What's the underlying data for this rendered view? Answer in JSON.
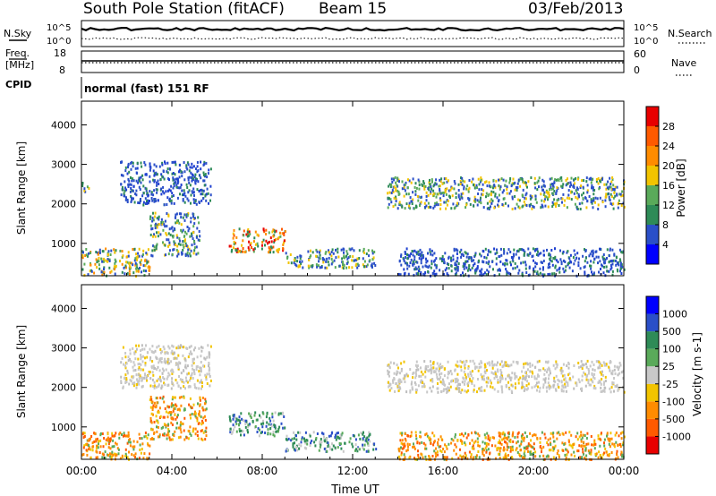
{
  "header": {
    "station": "South Pole Station (fitACF)",
    "beam": "Beam 15",
    "date": "03/Feb/2013"
  },
  "top_panels": {
    "nsky_label": "N.Sky",
    "nsky_ticks": [
      "10^5",
      "10^0"
    ],
    "nsearch_label": "N.Search",
    "nsearch_ticks": [
      "10^5",
      "10^0"
    ],
    "freq_label": "Freq.",
    "freq_unit": "[MHz]",
    "freq_ticks": [
      "18",
      "8"
    ],
    "nave_label": "Nave",
    "nave_ticks": [
      "60",
      "0"
    ],
    "cpid_label": "CPID",
    "cpid_value": "normal (fast) 151 RF"
  },
  "chart_data": [
    {
      "type": "heatmap",
      "panel": "power",
      "ylabel": "Slant Range [km]",
      "xlabel": "",
      "ylim": [
        180,
        4600
      ],
      "y_ticks": [
        "4000",
        "3000",
        "2000",
        "1000"
      ],
      "x_ticks": [
        "00:00",
        "04:00",
        "08:00",
        "12:00",
        "16:00",
        "20:00",
        "00:00"
      ],
      "colorbar_label": "Power [dB]",
      "colorbar_ticks": [
        "28",
        "24",
        "20",
        "16",
        "12",
        "8",
        "4"
      ],
      "colorbar_colors": [
        "#0000ff",
        "#2a4fc8",
        "#2e8b57",
        "#5aaa5a",
        "#f2c400",
        "#ff8c00",
        "#ff5a00",
        "#e80000"
      ],
      "echo_bands": [
        {
          "t": [
            0.0,
            3.0
          ],
          "range": [
            200,
            900
          ],
          "level": "mixed"
        },
        {
          "t": [
            0.0,
            0.3
          ],
          "range": [
            2300,
            2600
          ],
          "level": "medium"
        },
        {
          "t": [
            1.7,
            5.7
          ],
          "range": [
            2000,
            3100
          ],
          "level": "low"
        },
        {
          "t": [
            3.0,
            5.2
          ],
          "range": [
            700,
            1800
          ],
          "level": "medium"
        },
        {
          "t": [
            6.5,
            9.0
          ],
          "range": [
            800,
            1400
          ],
          "level": "high"
        },
        {
          "t": [
            9.0,
            13.0
          ],
          "range": [
            400,
            900
          ],
          "level": "medium"
        },
        {
          "t": [
            13.5,
            24.0
          ],
          "range": [
            1900,
            2700
          ],
          "level": "medium"
        },
        {
          "t": [
            14.0,
            24.0
          ],
          "range": [
            200,
            900
          ],
          "level": "low"
        }
      ]
    },
    {
      "type": "heatmap",
      "panel": "velocity",
      "ylabel": "Slant Range [km]",
      "xlabel": "Time UT",
      "ylim": [
        180,
        4600
      ],
      "y_ticks": [
        "4000",
        "3000",
        "2000",
        "1000"
      ],
      "x_ticks": [
        "00:00",
        "04:00",
        "08:00",
        "12:00",
        "16:00",
        "20:00",
        "00:00"
      ],
      "colorbar_label": "Velocity [m s-1]",
      "colorbar_ticks": [
        "1000",
        "500",
        "100",
        "25",
        "-25",
        "-100",
        "-500",
        "-1000"
      ],
      "colorbar_colors": [
        "#e80000",
        "#ff5a00",
        "#ff8c00",
        "#f2c400",
        "#c8c8c8",
        "#5aaa5a",
        "#2e8b57",
        "#2a4fc8",
        "#0000ff"
      ],
      "echo_bands": [
        {
          "t": [
            0.0,
            3.0
          ],
          "range": [
            200,
            900
          ],
          "vel": "orange"
        },
        {
          "t": [
            1.7,
            5.7
          ],
          "range": [
            2000,
            3100
          ],
          "vel": "grey"
        },
        {
          "t": [
            3.0,
            5.5
          ],
          "range": [
            700,
            1800
          ],
          "vel": "orange"
        },
        {
          "t": [
            6.5,
            9.0
          ],
          "range": [
            800,
            1400
          ],
          "vel": "green"
        },
        {
          "t": [
            9.0,
            13.0
          ],
          "range": [
            400,
            900
          ],
          "vel": "green"
        },
        {
          "t": [
            13.5,
            24.0
          ],
          "range": [
            1900,
            2700
          ],
          "vel": "grey"
        },
        {
          "t": [
            14.0,
            24.0
          ],
          "range": [
            200,
            900
          ],
          "vel": "orange"
        }
      ]
    }
  ]
}
